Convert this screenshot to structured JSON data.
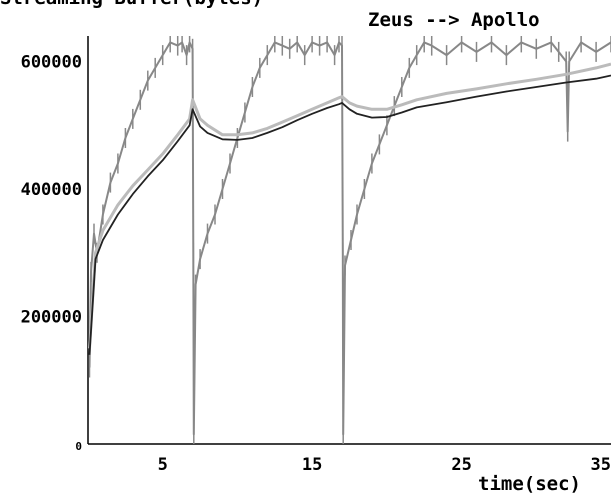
{
  "chart_data": {
    "type": "line",
    "title": "Zeus --> Apollo",
    "ylabel": "Streaming Buffer(bytes)",
    "xlabel": "time(sec)",
    "xlim": [
      0,
      35
    ],
    "ylim": [
      0,
      640000
    ],
    "x_ticks": [
      5,
      15,
      25,
      35
    ],
    "y_ticks": [
      0,
      200000,
      400000,
      600000
    ],
    "grid": false,
    "series": [
      {
        "name": "",
        "color": "#888888",
        "style": "sawtooth-jagged",
        "x": [
          0.1,
          0.2,
          0.4,
          0.6,
          1.0,
          1.5,
          2.0,
          2.5,
          3.0,
          3.5,
          4.0,
          4.5,
          5.0,
          5.5,
          6.0,
          6.3,
          6.6,
          6.8,
          7.0,
          7.05,
          7.08,
          7.2,
          7.5,
          8.0,
          8.5,
          9.0,
          9.5,
          10.0,
          10.5,
          11.0,
          11.5,
          12.0,
          12.5,
          13.0,
          13.5,
          14.0,
          14.5,
          15.0,
          15.5,
          16.0,
          16.5,
          16.8,
          17.0,
          17.05,
          17.08,
          17.2,
          17.6,
          18.0,
          18.5,
          19.0,
          19.5,
          20.0,
          20.5,
          21.0,
          21.5,
          22.0,
          22.5,
          23.0,
          24.0,
          25.0,
          26.0,
          27.0,
          28.0,
          29.0,
          30.0,
          31.0,
          31.5,
          32.0,
          32.1,
          32.2,
          33.0,
          34.0,
          35.0
        ],
        "y": [
          120000,
          270000,
          330000,
          300000,
          360000,
          410000,
          440000,
          480000,
          510000,
          540000,
          570000,
          590000,
          610000,
          630000,
          625000,
          630000,
          610000,
          630000,
          620000,
          300000,
          15000,
          250000,
          290000,
          330000,
          360000,
          400000,
          440000,
          480000,
          520000,
          560000,
          590000,
          610000,
          630000,
          625000,
          620000,
          630000,
          610000,
          630000,
          625000,
          630000,
          610000,
          630000,
          625000,
          300000,
          15000,
          280000,
          320000,
          360000,
          400000,
          440000,
          470000,
          500000,
          530000,
          560000,
          590000,
          610000,
          630000,
          625000,
          610000,
          630000,
          615000,
          630000,
          610000,
          630000,
          620000,
          630000,
          615000,
          600000,
          490000,
          600000,
          630000,
          615000,
          630000
        ]
      },
      {
        "name": "",
        "color": "#bbbbbb",
        "style": "smooth",
        "x": [
          0.1,
          0.5,
          1.0,
          2.0,
          3.0,
          4.0,
          5.0,
          6.0,
          6.8,
          7.0,
          7.5,
          8.0,
          9.0,
          10.0,
          11.0,
          12.0,
          13.0,
          14.0,
          15.0,
          16.0,
          16.8,
          17.0,
          17.5,
          18.0,
          19.0,
          20.0,
          21.0,
          22.0,
          24.0,
          26.0,
          28.0,
          30.0,
          32.0,
          34.0,
          35.0
        ],
        "y": [
          150000,
          300000,
          335000,
          375000,
          405000,
          430000,
          455000,
          485000,
          510000,
          540000,
          510000,
          500000,
          485000,
          485000,
          488000,
          495000,
          505000,
          515000,
          525000,
          535000,
          543000,
          545000,
          535000,
          530000,
          525000,
          525000,
          532000,
          540000,
          550000,
          557000,
          565000,
          572000,
          580000,
          590000,
          596000
        ]
      },
      {
        "name": "",
        "color": "#222222",
        "style": "smooth",
        "x": [
          0.1,
          0.5,
          1.0,
          2.0,
          3.0,
          4.0,
          5.0,
          6.0,
          6.8,
          7.0,
          7.5,
          8.0,
          9.0,
          10.0,
          11.0,
          12.0,
          13.0,
          14.0,
          15.0,
          16.0,
          16.8,
          17.0,
          17.5,
          18.0,
          19.0,
          20.0,
          21.0,
          22.0,
          24.0,
          26.0,
          28.0,
          30.0,
          32.0,
          34.0,
          35.0
        ],
        "y": [
          140000,
          290000,
          320000,
          360000,
          392000,
          420000,
          445000,
          475000,
          500000,
          525000,
          498000,
          488000,
          478000,
          477000,
          480000,
          488000,
          497000,
          508000,
          518000,
          527000,
          533000,
          535000,
          525000,
          518000,
          512000,
          513000,
          520000,
          528000,
          536000,
          545000,
          553000,
          560000,
          567000,
          573000,
          578000
        ]
      }
    ]
  }
}
